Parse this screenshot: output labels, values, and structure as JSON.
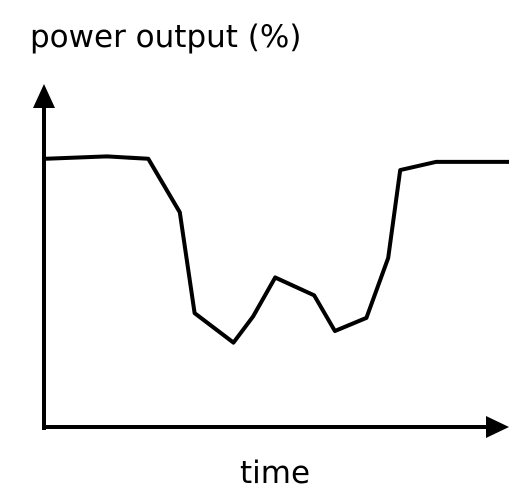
{
  "chart_data": {
    "type": "line",
    "title": "",
    "xlabel": "time",
    "ylabel": "power output (%)",
    "x_ticks_shown": false,
    "y_ticks_shown": false,
    "grid": false,
    "legend": "none",
    "xlim": [
      0,
      100
    ],
    "ylim": [
      0,
      100
    ],
    "series": [
      {
        "color": "#000000",
        "points": [
          {
            "x": 0.0,
            "y": 78.2
          },
          {
            "x": 13.2,
            "y": 78.9
          },
          {
            "x": 22.1,
            "y": 78.2
          },
          {
            "x": 28.9,
            "y": 62.6
          },
          {
            "x": 32.1,
            "y": 33.2
          },
          {
            "x": 40.5,
            "y": 24.6
          },
          {
            "x": 44.7,
            "y": 32.2
          },
          {
            "x": 49.5,
            "y": 43.6
          },
          {
            "x": 57.9,
            "y": 38.4
          },
          {
            "x": 62.4,
            "y": 28.0
          },
          {
            "x": 69.2,
            "y": 31.8
          },
          {
            "x": 73.9,
            "y": 49.3
          },
          {
            "x": 76.5,
            "y": 74.9
          },
          {
            "x": 84.2,
            "y": 77.3
          },
          {
            "x": 100.0,
            "y": 77.3
          }
        ]
      }
    ]
  }
}
